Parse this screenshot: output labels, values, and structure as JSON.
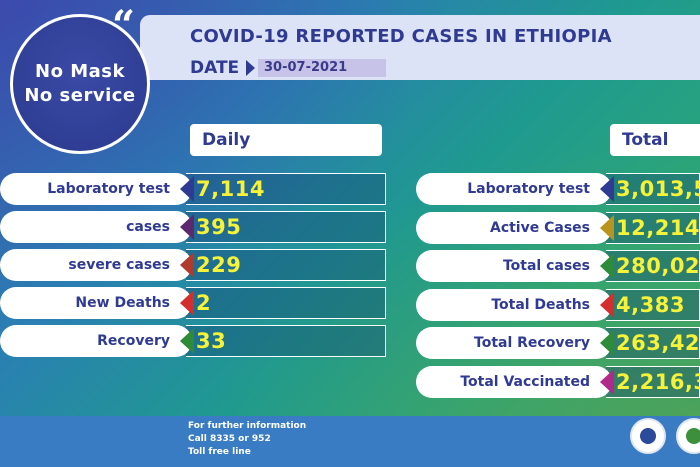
{
  "badge": {
    "line1": "No Mask",
    "line2": "No service"
  },
  "header": {
    "title": "COVID-19 REPORTED CASES IN ETHIOPIA",
    "date_label": "DATE",
    "date_value": "30-07-2021"
  },
  "daily": {
    "heading": "Daily",
    "rows": [
      {
        "label": "Laboratory test",
        "value": "7,114",
        "color": "#2f3a93"
      },
      {
        "label": "cases",
        "value": "395",
        "color": "#5b2a6e"
      },
      {
        "label": "severe cases",
        "value": "229",
        "color": "#b03a2e"
      },
      {
        "label": "New Deaths",
        "value": "2",
        "color": "#d32f2f"
      },
      {
        "label": "Recovery",
        "value": "33",
        "color": "#2e8b3a"
      }
    ]
  },
  "total": {
    "heading": "Total",
    "rows": [
      {
        "label": "Laboratory test",
        "value": "3,013,5",
        "color": "#2f3a93"
      },
      {
        "label": "Active Cases",
        "value": "12,214",
        "color": "#b8941e"
      },
      {
        "label": "Total cases",
        "value": "280,02",
        "color": "#2e8b3a"
      },
      {
        "label": "Total Deaths",
        "value": "4,383",
        "color": "#d32f2f"
      },
      {
        "label": "Total Recovery",
        "value": "263,42",
        "color": "#2e8b3a"
      },
      {
        "label": "Total Vaccinated",
        "value": "2,216,3",
        "color": "#b02a8a"
      }
    ]
  },
  "footer": {
    "line1": "For further information",
    "line2": "Call 8335 or 952",
    "line3": "Toll free line"
  }
}
